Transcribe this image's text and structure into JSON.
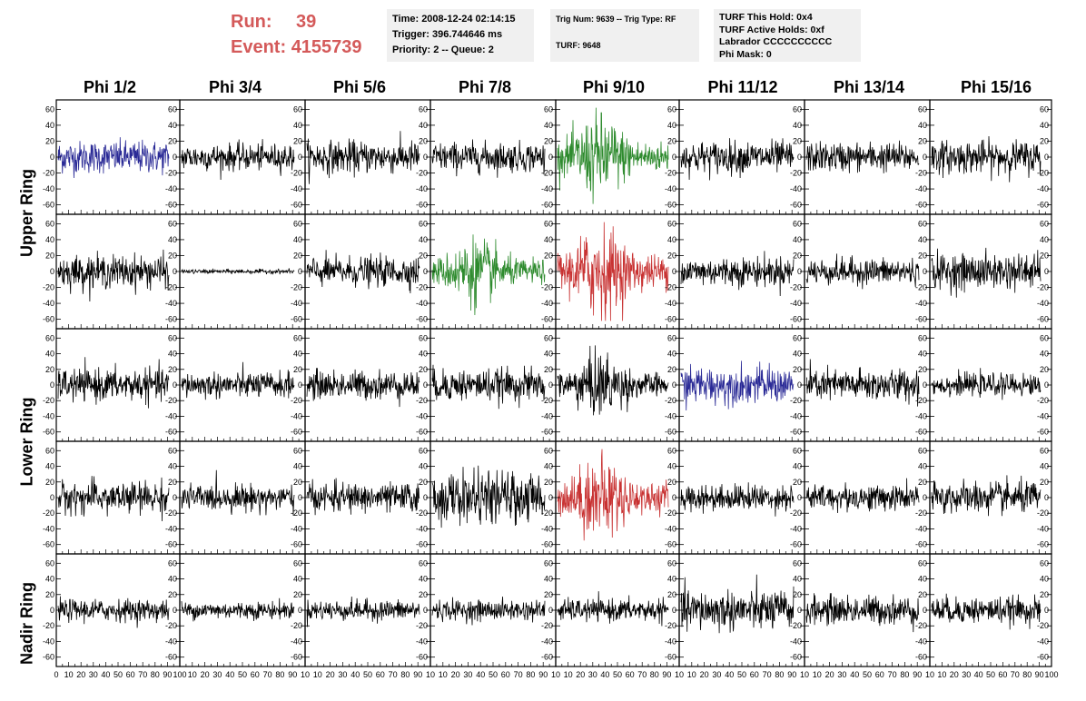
{
  "run": {
    "run_label": "Run:",
    "run_value": "39",
    "event_label": "Event:",
    "event_value": "4155739"
  },
  "time_panel": {
    "time": "Time: 2008-12-24 02:14:15",
    "trigger": "Trigger: 396.744646 ms",
    "priority": "Priority: 2 -- Queue: 2"
  },
  "trig_panel": {
    "trig": "Trig Num: 9639 -- Trig Type: RF",
    "turf": "TURF: 9648"
  },
  "turf_panel": {
    "this_hold": "TURF This Hold: 0x4",
    "active_holds": "TURF Active Holds: 0xf",
    "labrador": "Labrador CCCCCCCCCC",
    "phi_mask": "Phi Mask: 0"
  },
  "phi_headers": [
    "Phi 1/2",
    "Phi 3/4",
    "Phi 5/6",
    "Phi 7/8",
    "Phi 9/10",
    "Phi 11/12",
    "Phi 13/14",
    "Phi 15/16"
  ],
  "ring_labels": {
    "upper": "Upper Ring",
    "lower": "Lower Ring",
    "nadir": "Nadir Ring"
  },
  "colors": {
    "black": "#000000",
    "blue": "#2a2a96",
    "green": "#2e8b2e",
    "red": "#c83232",
    "title_red": "#d45a5a",
    "panel_bg": "#f0f0f0"
  },
  "chart_data": {
    "type": "line",
    "description_rows": 5,
    "description_cols": 8,
    "ylim": [
      -65,
      65
    ],
    "xlim": [
      0,
      100
    ],
    "y_ticks": [
      -60,
      -40,
      -20,
      0,
      20,
      40,
      60
    ],
    "y_tick_labels": [
      "-60",
      "-40",
      "-20",
      "0",
      "20",
      "40",
      "60"
    ],
    "x_tick_labels_first": [
      "0",
      "10",
      "20",
      "30",
      "40",
      "50",
      "60",
      "70",
      "80",
      "90",
      "100"
    ],
    "x_tick_labels": [
      "10",
      "20",
      "30",
      "40",
      "50",
      "60",
      "70",
      "80",
      "90",
      "10"
    ],
    "x_tick_labels_last": [
      "10",
      "20",
      "30",
      "40",
      "50",
      "60",
      "70",
      "80",
      "90",
      "100"
    ],
    "traces": [
      {
        "row": 0,
        "col": 0,
        "color": "blue",
        "amplitude": 22,
        "burst": false
      },
      {
        "row": 0,
        "col": 1,
        "color": "black",
        "amplitude": 18,
        "burst": false
      },
      {
        "row": 0,
        "col": 2,
        "color": "black",
        "amplitude": 22,
        "burst": false
      },
      {
        "row": 0,
        "col": 3,
        "color": "black",
        "amplitude": 20,
        "burst": false
      },
      {
        "row": 0,
        "col": 4,
        "color": "green",
        "amplitude": 45,
        "burst": true
      },
      {
        "row": 0,
        "col": 5,
        "color": "black",
        "amplitude": 22,
        "burst": false
      },
      {
        "row": 0,
        "col": 6,
        "color": "black",
        "amplitude": 20,
        "burst": false
      },
      {
        "row": 0,
        "col": 7,
        "color": "black",
        "amplitude": 22,
        "burst": false
      },
      {
        "row": 1,
        "col": 0,
        "color": "black",
        "amplitude": 22,
        "burst": false
      },
      {
        "row": 1,
        "col": 1,
        "color": "black",
        "amplitude": 3,
        "burst": false
      },
      {
        "row": 1,
        "col": 2,
        "color": "black",
        "amplitude": 20,
        "burst": false
      },
      {
        "row": 1,
        "col": 3,
        "color": "green",
        "amplitude": 35,
        "burst": true
      },
      {
        "row": 1,
        "col": 4,
        "color": "red",
        "amplitude": 50,
        "burst": true
      },
      {
        "row": 1,
        "col": 5,
        "color": "black",
        "amplitude": 20,
        "burst": false
      },
      {
        "row": 1,
        "col": 6,
        "color": "black",
        "amplitude": 18,
        "burst": false
      },
      {
        "row": 1,
        "col": 7,
        "color": "black",
        "amplitude": 24,
        "burst": false
      },
      {
        "row": 2,
        "col": 0,
        "color": "black",
        "amplitude": 22,
        "burst": false
      },
      {
        "row": 2,
        "col": 1,
        "color": "black",
        "amplitude": 18,
        "burst": false
      },
      {
        "row": 2,
        "col": 2,
        "color": "black",
        "amplitude": 20,
        "burst": false
      },
      {
        "row": 2,
        "col": 3,
        "color": "black",
        "amplitude": 22,
        "burst": false
      },
      {
        "row": 2,
        "col": 4,
        "color": "black",
        "amplitude": 35,
        "burst": true
      },
      {
        "row": 2,
        "col": 5,
        "color": "blue",
        "amplitude": 25,
        "burst": false
      },
      {
        "row": 2,
        "col": 6,
        "color": "black",
        "amplitude": 22,
        "burst": false
      },
      {
        "row": 2,
        "col": 7,
        "color": "black",
        "amplitude": 15,
        "burst": false
      },
      {
        "row": 3,
        "col": 0,
        "color": "black",
        "amplitude": 22,
        "burst": false
      },
      {
        "row": 3,
        "col": 1,
        "color": "black",
        "amplitude": 18,
        "burst": false
      },
      {
        "row": 3,
        "col": 2,
        "color": "black",
        "amplitude": 20,
        "burst": false
      },
      {
        "row": 3,
        "col": 3,
        "color": "black",
        "amplitude": 35,
        "burst": false
      },
      {
        "row": 3,
        "col": 4,
        "color": "red",
        "amplitude": 45,
        "burst": true
      },
      {
        "row": 3,
        "col": 5,
        "color": "black",
        "amplitude": 18,
        "burst": false
      },
      {
        "row": 3,
        "col": 6,
        "color": "black",
        "amplitude": 18,
        "burst": false
      },
      {
        "row": 3,
        "col": 7,
        "color": "black",
        "amplitude": 22,
        "burst": false
      },
      {
        "row": 4,
        "col": 0,
        "color": "black",
        "amplitude": 15,
        "burst": false
      },
      {
        "row": 4,
        "col": 1,
        "color": "black",
        "amplitude": 12,
        "burst": false
      },
      {
        "row": 4,
        "col": 2,
        "color": "black",
        "amplitude": 14,
        "burst": false
      },
      {
        "row": 4,
        "col": 3,
        "color": "black",
        "amplitude": 14,
        "burst": false
      },
      {
        "row": 4,
        "col": 4,
        "color": "black",
        "amplitude": 15,
        "burst": false
      },
      {
        "row": 4,
        "col": 5,
        "color": "black",
        "amplitude": 28,
        "burst": false
      },
      {
        "row": 4,
        "col": 6,
        "color": "black",
        "amplitude": 20,
        "burst": false
      },
      {
        "row": 4,
        "col": 7,
        "color": "black",
        "amplitude": 18,
        "burst": false
      }
    ]
  }
}
